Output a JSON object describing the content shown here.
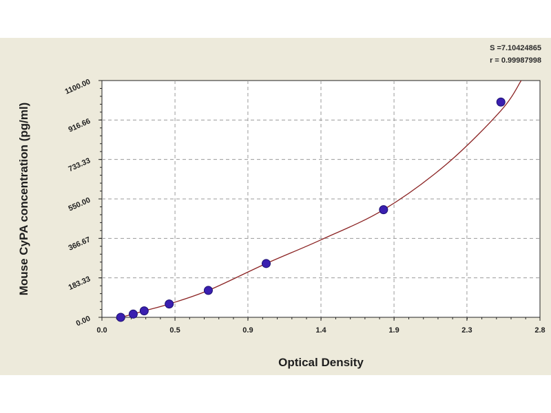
{
  "stats": {
    "s_text": "S =7.10424865",
    "r_text": "r = 0.99987998"
  },
  "colors": {
    "panel_bg": "#edeadb",
    "plot_bg": "#ffffff",
    "grid": "#9a9a9a",
    "curve": "#8b2323",
    "marker": "#3a1fb0",
    "marker_edge": "#1a0f70"
  },
  "chart_data": {
    "type": "scatter",
    "title": "",
    "xlabel": "Optical Density",
    "ylabel": "Mouse CyPA concentration (pg/ml)",
    "xlim": [
      0.0,
      2.8
    ],
    "ylim": [
      0.0,
      1100.0
    ],
    "x_ticks": [
      "0.0",
      "0.5",
      "0.9",
      "1.4",
      "1.9",
      "2.3",
      "2.8"
    ],
    "x_tick_values": [
      0.0,
      0.467,
      0.933,
      1.4,
      1.867,
      2.333,
      2.8
    ],
    "y_ticks": [
      "0.00",
      "183.33",
      "366.67",
      "550.00",
      "733.33",
      "916.66",
      "1100.00"
    ],
    "y_tick_values": [
      0.0,
      183.33,
      366.67,
      550.0,
      733.33,
      916.66,
      1100.0
    ],
    "grid": true,
    "legend": "none",
    "points": [
      {
        "x": 0.12,
        "y": 0
      },
      {
        "x": 0.2,
        "y": 15
      },
      {
        "x": 0.27,
        "y": 30
      },
      {
        "x": 0.43,
        "y": 62
      },
      {
        "x": 0.68,
        "y": 125
      },
      {
        "x": 1.05,
        "y": 250
      },
      {
        "x": 1.8,
        "y": 500
      },
      {
        "x": 2.55,
        "y": 1000
      }
    ],
    "fit_curve": [
      {
        "x": 0.12,
        "y": 0
      },
      {
        "x": 0.2,
        "y": 15
      },
      {
        "x": 0.27,
        "y": 30
      },
      {
        "x": 0.43,
        "y": 62
      },
      {
        "x": 0.68,
        "y": 125
      },
      {
        "x": 1.05,
        "y": 250
      },
      {
        "x": 1.4,
        "y": 360
      },
      {
        "x": 1.8,
        "y": 500
      },
      {
        "x": 2.2,
        "y": 710
      },
      {
        "x": 2.55,
        "y": 960
      },
      {
        "x": 2.68,
        "y": 1100
      }
    ]
  }
}
